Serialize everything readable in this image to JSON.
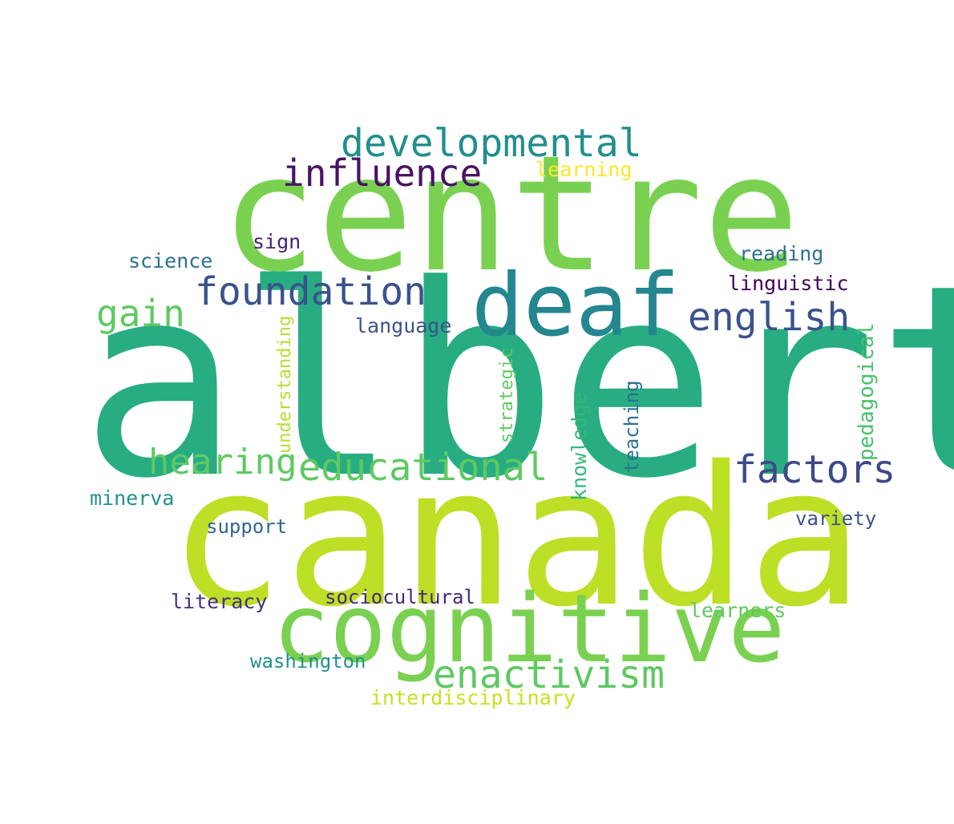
{
  "colors": {
    "background": "#ffffff",
    "palette": [
      "#440154",
      "#3b518b",
      "#2c728e",
      "#21918c",
      "#28ae80",
      "#5ec962",
      "#7ad151",
      "#addc30",
      "#c2df23",
      "#fde725"
    ]
  },
  "words": {
    "alberta": {
      "text": "alberta",
      "color": "#27ad81"
    },
    "canada": {
      "text": "canada",
      "color": "#bddf26"
    },
    "centre": {
      "text": "centre",
      "color": "#7ad151"
    },
    "deaf": {
      "text": "deaf",
      "color": "#24868e"
    },
    "cognitive": {
      "text": "cognitive",
      "color": "#7ad151"
    },
    "developmental": {
      "text": "developmental",
      "color": "#218f8d"
    },
    "influence": {
      "text": "influence",
      "color": "#471365"
    },
    "foundation": {
      "text": "foundation",
      "color": "#3b528b"
    },
    "gain": {
      "text": "gain",
      "color": "#5ec962"
    },
    "english": {
      "text": "english",
      "color": "#3b528b"
    },
    "factors": {
      "text": "factors",
      "color": "#3e4989"
    },
    "educational": {
      "text": "educational",
      "color": "#5ec962"
    },
    "hearing": {
      "text": "hearing",
      "color": "#5ec962"
    },
    "enactivism": {
      "text": "enactivism",
      "color": "#5ec962"
    },
    "learning": {
      "text": "learning",
      "color": "#fde725"
    },
    "sign": {
      "text": "sign",
      "color": "#482173"
    },
    "science": {
      "text": "science",
      "color": "#2c728e"
    },
    "reading": {
      "text": "reading",
      "color": "#2c728e"
    },
    "linguistic": {
      "text": "linguistic",
      "color": "#440154"
    },
    "language": {
      "text": "language",
      "color": "#3b528b"
    },
    "minerva": {
      "text": "minerva",
      "color": "#21918c"
    },
    "support": {
      "text": "support",
      "color": "#31688e"
    },
    "variety": {
      "text": "variety",
      "color": "#3b528b"
    },
    "literacy": {
      "text": "literacy",
      "color": "#46327e"
    },
    "sociocultural": {
      "text": "sociocultural",
      "color": "#482878"
    },
    "learners": {
      "text": "learners",
      "color": "#5ec962"
    },
    "washington": {
      "text": "washington",
      "color": "#21918c"
    },
    "interdisciplinary": {
      "text": "interdisciplinary",
      "color": "#c8e020"
    },
    "understanding": {
      "text": "understanding",
      "color": "#b5de2b"
    },
    "strategic": {
      "text": "strategic",
      "color": "#5ec962"
    },
    "knowledge": {
      "text": "knowledge",
      "color": "#35b779"
    },
    "teaching": {
      "text": "teaching",
      "color": "#2c728e"
    },
    "pedagogical": {
      "text": "pedagogical",
      "color": "#4ac16d"
    }
  }
}
